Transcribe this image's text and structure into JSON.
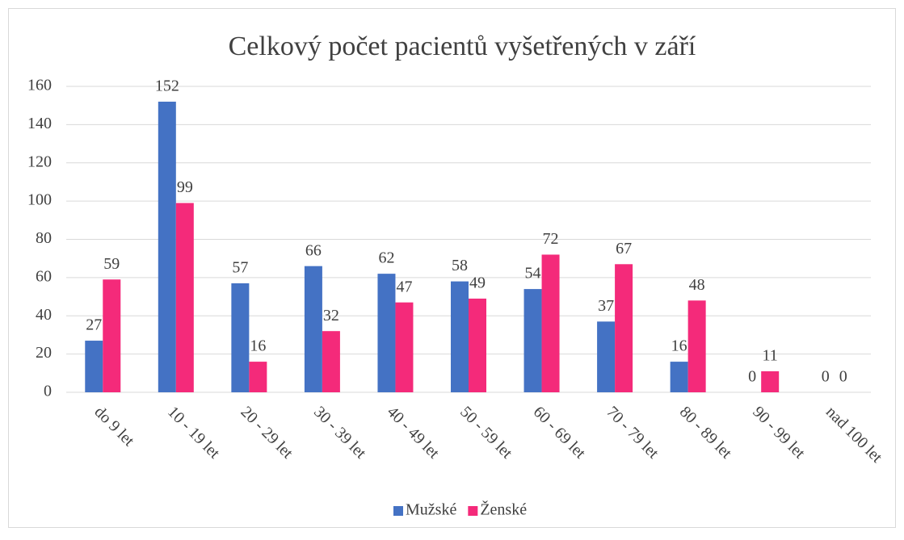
{
  "chart_data": {
    "type": "bar",
    "title": "Celkový počet pacientů vyšetřených v září",
    "categories": [
      "do 9 let",
      "10 - 19 let",
      "20 - 29 let",
      "30 - 39 let",
      "40 - 49 let",
      "50 - 59 let",
      "60 - 69 let",
      "70 - 79 let",
      "80 - 89 let",
      "90 - 99 let",
      "nad 100 let"
    ],
    "series": [
      {
        "name": "Mužské",
        "color": "#4472c4",
        "values": [
          27,
          152,
          57,
          66,
          62,
          58,
          54,
          37,
          16,
          0,
          0
        ]
      },
      {
        "name": "Ženské",
        "color": "#f42a7a",
        "values": [
          59,
          99,
          16,
          32,
          47,
          49,
          72,
          67,
          48,
          11,
          0
        ]
      }
    ],
    "ylim": [
      0,
      160
    ],
    "yticks": [
      0,
      20,
      40,
      60,
      80,
      100,
      120,
      140,
      160
    ],
    "grid": true,
    "legend": "bottom"
  }
}
